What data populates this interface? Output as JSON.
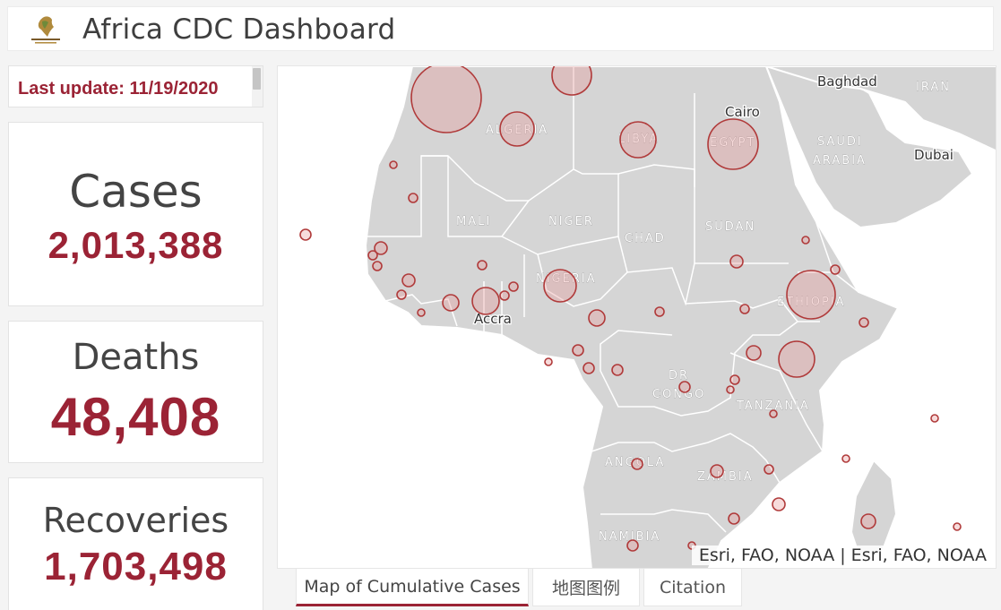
{
  "header": {
    "title": "Africa CDC Dashboard",
    "logo_icon": "africa-cdc-logo"
  },
  "update": {
    "text": "Last update: 11/19/2020"
  },
  "stats": {
    "cases": {
      "label": "Cases",
      "value": "2,013,388"
    },
    "deaths": {
      "label": "Deaths",
      "value": "48,408"
    },
    "recoveries": {
      "label": "Recoveries",
      "value": "1,703,498"
    }
  },
  "map": {
    "country_labels": [
      "ALGERIA",
      "LIBYA",
      "EGYPT",
      "SAUDI",
      "ARABIA",
      "MALI",
      "NIGER",
      "CHAD",
      "SUDAN",
      "NIGERIA",
      "ETHIOPIA",
      "DR",
      "CONGO",
      "TANZANIA",
      "ANGOLA",
      "ZAMBIA",
      "NAMIBIA",
      "IRAN"
    ],
    "city_labels": [
      "Baghdad",
      "Cairo",
      "Dubai",
      "Accra"
    ],
    "attribution": "Esri, FAO, NOAA | Esri, FAO, NOAA"
  },
  "tabs": [
    {
      "label": "Map of Cumulative Cases"
    },
    {
      "label": "地图图例"
    },
    {
      "label": "Citation"
    }
  ],
  "colors": {
    "accent": "#9b2335",
    "land": "#d5d5d5",
    "bubble": "#c0392b"
  }
}
